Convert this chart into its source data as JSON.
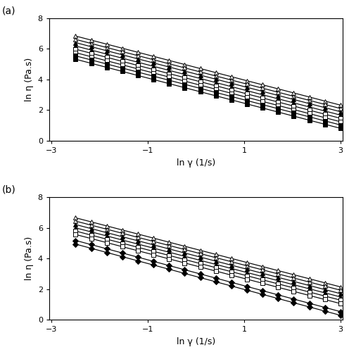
{
  "x_start": -2.5,
  "x_end": 3.0,
  "x_axis_min": -3,
  "x_axis_max": 3,
  "y_min": 0,
  "y_max": 8,
  "xlabel": "ln γ (1/s)",
  "ylabel": "ln η (Pa.s)",
  "label_a": "(a)",
  "label_b": "(b)",
  "panel_a": {
    "series": [
      {
        "marker": "^",
        "filled": false,
        "intercept": 4.785,
        "slope": -0.82
      },
      {
        "marker": "^",
        "filled": false,
        "intercept": 4.565,
        "slope": -0.82
      },
      {
        "marker": "^",
        "filled": true,
        "intercept": 4.355,
        "slope": -0.82
      },
      {
        "marker": "^",
        "filled": true,
        "intercept": 4.135,
        "slope": -0.82
      },
      {
        "marker": "s",
        "filled": false,
        "intercept": 3.925,
        "slope": -0.82
      },
      {
        "marker": "s",
        "filled": false,
        "intercept": 3.7,
        "slope": -0.82
      },
      {
        "marker": "s",
        "filled": true,
        "intercept": 3.49,
        "slope": -0.82
      },
      {
        "marker": "s",
        "filled": true,
        "intercept": 3.27,
        "slope": -0.82
      }
    ]
  },
  "panel_b": {
    "series": [
      {
        "marker": "^",
        "filled": false,
        "intercept": 4.6,
        "slope": -0.82
      },
      {
        "marker": "^",
        "filled": false,
        "intercept": 4.385,
        "slope": -0.82
      },
      {
        "marker": "^",
        "filled": true,
        "intercept": 4.16,
        "slope": -0.82
      },
      {
        "marker": "^",
        "filled": true,
        "intercept": 3.945,
        "slope": -0.82
      },
      {
        "marker": "s",
        "filled": false,
        "intercept": 3.735,
        "slope": -0.82
      },
      {
        "marker": "s",
        "filled": false,
        "intercept": 3.51,
        "slope": -0.82
      },
      {
        "marker": "D",
        "filled": true,
        "intercept": 3.06,
        "slope": -0.845
      },
      {
        "marker": "D",
        "filled": true,
        "intercept": 2.82,
        "slope": -0.845
      }
    ]
  },
  "n_points": 18,
  "markersize": 4.5,
  "linewidth": 0.85
}
